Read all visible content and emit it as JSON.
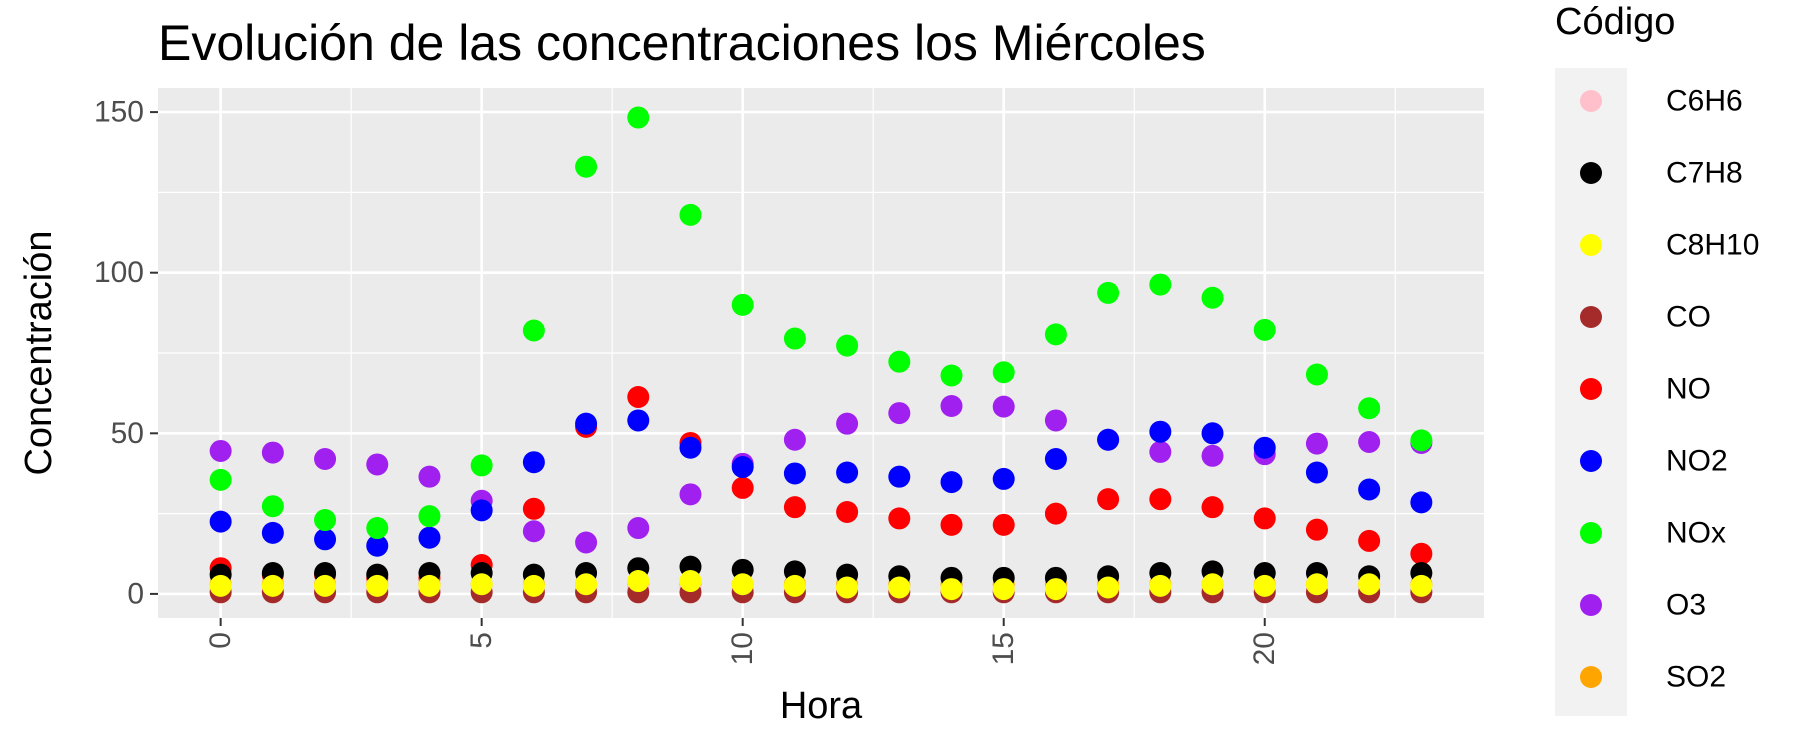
{
  "chart_data": {
    "type": "scatter",
    "title": "Evolución de las concentraciones los Miércoles",
    "xlabel": "Hora",
    "ylabel": "Concentración",
    "xlim": [
      -1.2,
      24.2
    ],
    "ylim": [
      -7.5,
      157.5
    ],
    "x_ticks": [
      0,
      5,
      10,
      15,
      20
    ],
    "y_ticks": [
      0,
      50,
      100,
      150
    ],
    "grid": true,
    "legend_title": "Código",
    "legend_position": "right",
    "x": [
      0,
      1,
      2,
      3,
      4,
      5,
      6,
      7,
      8,
      9,
      10,
      11,
      12,
      13,
      14,
      15,
      16,
      17,
      18,
      19,
      20,
      21,
      22,
      23
    ],
    "series": [
      {
        "name": "O3",
        "color": "#A020F0",
        "values": [
          44.5,
          44,
          42,
          40.3,
          36.5,
          29,
          19.5,
          16,
          20.5,
          31,
          40.5,
          48,
          53,
          56.3,
          58.5,
          58.3,
          54,
          48,
          44.2,
          43,
          43.5,
          46.8,
          47.3,
          47
        ]
      },
      {
        "name": "NO",
        "color": "#FF0000",
        "values": [
          8,
          6,
          6,
          5,
          5,
          9,
          26.5,
          52,
          61.3,
          47,
          33,
          27,
          25.5,
          23.5,
          21.5,
          21.5,
          25,
          29.5,
          29.5,
          27,
          23.5,
          20,
          16.5,
          12.5
        ]
      },
      {
        "name": "NO2",
        "color": "#0000FF",
        "values": [
          22.5,
          19,
          17,
          15,
          17.5,
          26,
          41,
          53,
          54,
          45.5,
          39.5,
          37.5,
          37.8,
          36.5,
          34.8,
          35.8,
          42,
          48,
          50.5,
          50,
          45.5,
          37.8,
          32.5,
          28.5
        ]
      },
      {
        "name": "NOx",
        "color": "#00FF00",
        "values": [
          35.5,
          27.3,
          23,
          20.5,
          24.2,
          40,
          82,
          133,
          148.3,
          118,
          90,
          79.5,
          77.3,
          72.3,
          68,
          69,
          80.8,
          93.7,
          96.3,
          92.2,
          82.2,
          68.3,
          57.8,
          47.8
        ]
      },
      {
        "name": "SO2",
        "color": "#FFA500",
        "values": [
          3,
          3,
          3,
          3,
          3,
          3,
          3,
          3,
          3,
          3,
          3,
          3,
          3,
          3,
          3,
          3,
          3,
          3,
          3,
          3,
          3,
          3,
          3,
          3
        ]
      },
      {
        "name": "C6H6",
        "color": "#FFC0CB",
        "values": [
          1,
          1,
          1,
          1,
          1,
          1,
          1,
          1,
          2,
          2,
          1.5,
          1,
          1,
          1,
          1,
          1,
          1,
          1,
          1,
          1,
          1,
          1,
          1,
          1
        ]
      },
      {
        "name": "C7H8",
        "color": "#000000",
        "values": [
          6,
          6.5,
          6.5,
          6,
          6.5,
          6.5,
          6,
          6.5,
          8,
          8.5,
          7.5,
          7,
          6,
          5.5,
          5,
          5,
          5,
          5.5,
          6.5,
          7,
          6.5,
          6.5,
          5.5,
          6.5
        ]
      },
      {
        "name": "CO",
        "color": "#A52A2A",
        "values": [
          0.5,
          0.5,
          0.5,
          0.5,
          0.5,
          0.5,
          0.5,
          0.5,
          0.5,
          0.5,
          0.5,
          0.5,
          0.5,
          0.5,
          0.5,
          0.5,
          0.5,
          0.5,
          0.5,
          0.5,
          0.5,
          0.5,
          0.5,
          0.5
        ]
      },
      {
        "name": "C8H10",
        "color": "#FFFF00",
        "values": [
          2.5,
          2.5,
          2.5,
          2.5,
          2.5,
          3,
          2.5,
          3,
          4,
          4,
          3,
          2.5,
          2,
          2,
          1.5,
          1.5,
          1.5,
          2,
          2.5,
          3,
          2.5,
          3,
          3,
          2.5
        ]
      }
    ],
    "legend_order": [
      "C6H6",
      "C7H8",
      "C8H10",
      "CO",
      "NO",
      "NO2",
      "NOx",
      "O3",
      "SO2"
    ]
  }
}
